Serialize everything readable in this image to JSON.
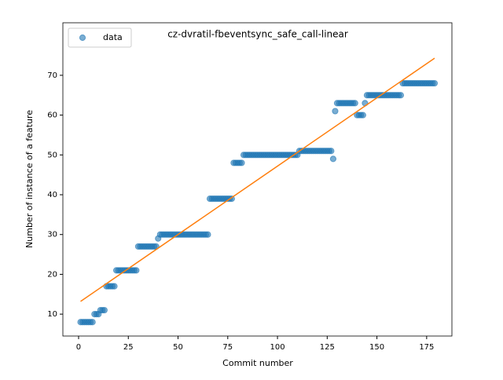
{
  "chart_data": {
    "type": "scatter",
    "title": "cz-dvratil-fbeventsync_safe_call-linear",
    "x_label": "Commit number",
    "y_label": "Number of instance of a feature",
    "xlim": [
      -7.9,
      187.7
    ],
    "ylim": [
      4.5,
      83.2
    ],
    "xticks": [
      0,
      25,
      50,
      75,
      100,
      125,
      150,
      175
    ],
    "yticks": [
      10,
      20,
      30,
      40,
      50,
      60,
      70
    ],
    "legend": "upper left",
    "series": [
      {
        "name": "data",
        "color": "#1f77b4",
        "x": [
          1,
          2,
          3,
          4,
          5,
          6,
          7,
          8,
          9,
          10,
          11,
          12,
          13,
          14,
          15,
          16,
          17,
          18,
          19,
          20,
          21,
          22,
          23,
          24,
          25,
          26,
          27,
          28,
          29,
          30,
          31,
          32,
          33,
          34,
          35,
          36,
          37,
          38,
          39,
          40,
          41,
          42,
          43,
          44,
          45,
          46,
          47,
          48,
          49,
          50,
          51,
          52,
          53,
          54,
          55,
          56,
          57,
          58,
          59,
          60,
          61,
          62,
          63,
          64,
          65,
          66,
          67,
          68,
          69,
          70,
          71,
          72,
          73,
          74,
          75,
          76,
          77,
          78,
          79,
          80,
          81,
          82,
          83,
          84,
          85,
          86,
          87,
          88,
          89,
          90,
          91,
          92,
          93,
          94,
          95,
          96,
          97,
          98,
          99,
          100,
          101,
          102,
          103,
          104,
          105,
          106,
          107,
          108,
          109,
          110,
          111,
          112,
          113,
          114,
          115,
          116,
          117,
          118,
          119,
          120,
          121,
          122,
          123,
          124,
          125,
          126,
          127,
          128,
          129,
          130,
          131,
          132,
          133,
          134,
          135,
          136,
          137,
          138,
          139,
          140,
          141,
          142,
          143,
          144,
          145,
          146,
          147,
          148,
          149,
          150,
          151,
          152,
          153,
          154,
          155,
          156,
          157,
          158,
          159,
          160,
          161,
          162,
          163,
          164,
          165,
          166,
          167,
          168,
          169,
          170,
          171,
          172,
          173,
          174,
          175,
          176,
          177,
          178,
          179
        ],
        "values": [
          8,
          8,
          8,
          8,
          8,
          8,
          8,
          10,
          10,
          10,
          11,
          11,
          11,
          17,
          17,
          17,
          17,
          17,
          21,
          21,
          21,
          21,
          21,
          21,
          21,
          21,
          21,
          21,
          21,
          27,
          27,
          27,
          27,
          27,
          27,
          27,
          27,
          27,
          27,
          29,
          30,
          30,
          30,
          30,
          30,
          30,
          30,
          30,
          30,
          30,
          30,
          30,
          30,
          30,
          30,
          30,
          30,
          30,
          30,
          30,
          30,
          30,
          30,
          30,
          30,
          39,
          39,
          39,
          39,
          39,
          39,
          39,
          39,
          39,
          39,
          39,
          39,
          48,
          48,
          48,
          48,
          48,
          50,
          50,
          50,
          50,
          50,
          50,
          50,
          50,
          50,
          50,
          50,
          50,
          50,
          50,
          50,
          50,
          50,
          50,
          50,
          50,
          50,
          50,
          50,
          50,
          50,
          50,
          50,
          50,
          51,
          51,
          51,
          51,
          51,
          51,
          51,
          51,
          51,
          51,
          51,
          51,
          51,
          51,
          51,
          51,
          51,
          49,
          61,
          63,
          63,
          63,
          63,
          63,
          63,
          63,
          63,
          63,
          63,
          60,
          60,
          60,
          60,
          63,
          65,
          65,
          65,
          65,
          65,
          65,
          65,
          65,
          65,
          65,
          65,
          65,
          65,
          65,
          65,
          65,
          65,
          65,
          68,
          68,
          68,
          68,
          68,
          68,
          68,
          68,
          68,
          68,
          68,
          68,
          68,
          68,
          68,
          68,
          68
        ]
      }
    ],
    "fit": {
      "color": "#ff7f0e",
      "x": [
        1,
        179
      ],
      "values": [
        13.2,
        74.3
      ]
    }
  }
}
